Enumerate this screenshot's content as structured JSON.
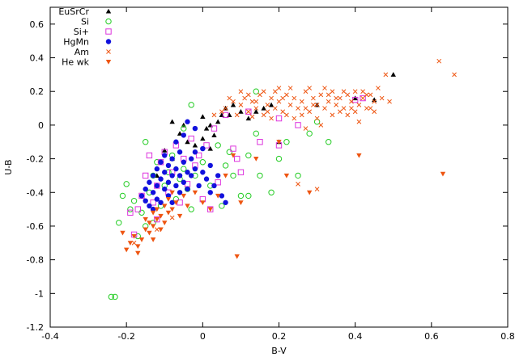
{
  "chart_data": {
    "type": "scatter",
    "xlabel": "B-V",
    "ylabel": "U-B",
    "xlim": [
      -0.4,
      0.8
    ],
    "ylim": [
      -1.2,
      0.7
    ],
    "x_ticks": [
      -0.4,
      -0.2,
      0,
      0.2,
      0.4,
      0.6,
      0.8
    ],
    "y_ticks": [
      -1.2,
      -1,
      -0.8,
      -0.6,
      -0.4,
      -0.2,
      0,
      0.2,
      0.4,
      0.6
    ],
    "x_tick_labels": [
      "-0.4",
      "-0.2",
      "0",
      "0.2",
      "0.4",
      "0.6",
      "0.8"
    ],
    "y_tick_labels": [
      "-1.2",
      "-1",
      "-0.8",
      "-0.6",
      "-0.4",
      "-0.2",
      "0",
      "0.2",
      "0.4",
      "0.6"
    ],
    "grid": false,
    "legend_position": "top-left",
    "series": [
      {
        "name": "EuSrCr",
        "marker": "triangle-up",
        "color": "#000000",
        "points": [
          [
            -0.1,
            -0.15
          ],
          [
            -0.08,
            -0.2
          ],
          [
            -0.06,
            -0.05
          ],
          [
            -0.04,
            -0.1
          ],
          [
            -0.02,
            -0.12
          ],
          [
            0.0,
            0.05
          ],
          [
            0.01,
            -0.02
          ],
          [
            0.02,
            0.0
          ],
          [
            0.03,
            -0.06
          ],
          [
            0.04,
            0.02
          ],
          [
            0.05,
            0.06
          ],
          [
            0.06,
            0.1
          ],
          [
            0.07,
            0.06
          ],
          [
            0.08,
            0.12
          ],
          [
            0.1,
            0.08
          ],
          [
            0.12,
            0.04
          ],
          [
            0.14,
            0.08
          ],
          [
            0.16,
            0.1
          ],
          [
            0.18,
            0.12
          ],
          [
            0.2,
            -0.1
          ],
          [
            0.3,
            0.12
          ],
          [
            0.4,
            0.16
          ],
          [
            0.45,
            0.15
          ],
          [
            0.5,
            0.3
          ],
          [
            -0.05,
            0.0
          ],
          [
            0.0,
            -0.08
          ],
          [
            0.02,
            -0.14
          ],
          [
            -0.12,
            -0.3
          ],
          [
            -0.08,
            0.02
          ]
        ]
      },
      {
        "name": "Si",
        "marker": "circle-open",
        "color": "#22cc22",
        "points": [
          [
            -0.24,
            -1.02
          ],
          [
            -0.23,
            -1.02
          ],
          [
            -0.22,
            -0.58
          ],
          [
            -0.2,
            -0.35
          ],
          [
            -0.19,
            -0.5
          ],
          [
            -0.18,
            -0.45
          ],
          [
            -0.16,
            -0.52
          ],
          [
            -0.15,
            -0.6
          ],
          [
            -0.14,
            -0.4
          ],
          [
            -0.13,
            -0.3
          ],
          [
            -0.12,
            -0.22
          ],
          [
            -0.11,
            -0.48
          ],
          [
            -0.1,
            -0.36
          ],
          [
            -0.09,
            -0.28
          ],
          [
            -0.08,
            -0.18
          ],
          [
            -0.07,
            -0.44
          ],
          [
            -0.06,
            -0.32
          ],
          [
            -0.05,
            -0.26
          ],
          [
            -0.04,
            -0.38
          ],
          [
            -0.03,
            -0.5
          ],
          [
            -0.02,
            -0.3
          ],
          [
            0.0,
            -0.22
          ],
          [
            0.02,
            -0.36
          ],
          [
            0.04,
            -0.12
          ],
          [
            0.06,
            -0.24
          ],
          [
            0.08,
            -0.3
          ],
          [
            0.1,
            -0.42
          ],
          [
            0.12,
            -0.18
          ],
          [
            0.14,
            -0.05
          ],
          [
            0.14,
            0.2
          ],
          [
            0.15,
            -0.3
          ],
          [
            0.18,
            -0.4
          ],
          [
            0.2,
            -0.2
          ],
          [
            0.22,
            -0.1
          ],
          [
            0.25,
            -0.3
          ],
          [
            0.28,
            -0.05
          ],
          [
            0.3,
            0.02
          ],
          [
            0.33,
            -0.1
          ],
          [
            -0.21,
            -0.42
          ],
          [
            -0.17,
            -0.66
          ],
          [
            -0.13,
            -0.58
          ],
          [
            -0.03,
            0.12
          ],
          [
            0.05,
            -0.48
          ],
          [
            0.07,
            -0.16
          ],
          [
            -0.15,
            -0.1
          ],
          [
            -0.05,
            -0.02
          ],
          [
            0.12,
            -0.42
          ]
        ]
      },
      {
        "name": "Si+",
        "marker": "square-open",
        "color": "#dd33dd",
        "points": [
          [
            -0.18,
            -0.65
          ],
          [
            -0.17,
            -0.5
          ],
          [
            -0.16,
            -0.42
          ],
          [
            -0.15,
            -0.3
          ],
          [
            -0.14,
            -0.18
          ],
          [
            -0.13,
            -0.46
          ],
          [
            -0.12,
            -0.36
          ],
          [
            -0.11,
            -0.22
          ],
          [
            -0.1,
            -0.16
          ],
          [
            -0.09,
            -0.4
          ],
          [
            -0.08,
            -0.28
          ],
          [
            -0.07,
            -0.12
          ],
          [
            -0.06,
            -0.46
          ],
          [
            -0.05,
            -0.2
          ],
          [
            -0.04,
            -0.35
          ],
          [
            -0.03,
            -0.08
          ],
          [
            -0.02,
            -0.24
          ],
          [
            0.0,
            -0.44
          ],
          [
            0.01,
            -0.12
          ],
          [
            0.02,
            -0.5
          ],
          [
            0.04,
            -0.34
          ],
          [
            0.06,
            0.06
          ],
          [
            0.08,
            -0.14
          ],
          [
            0.09,
            -0.2
          ],
          [
            0.1,
            -0.28
          ],
          [
            0.12,
            0.08
          ],
          [
            0.15,
            -0.1
          ],
          [
            0.2,
            -0.12
          ],
          [
            0.25,
            0.0
          ],
          [
            0.4,
            0.15
          ],
          [
            0.42,
            0.16
          ],
          [
            0.2,
            0.04
          ],
          [
            -0.19,
            -0.52
          ],
          [
            -0.12,
            -0.56
          ],
          [
            -0.01,
            -0.18
          ],
          [
            0.03,
            -0.02
          ]
        ]
      },
      {
        "name": "HgMn",
        "marker": "circle-filled",
        "color": "#1111dd",
        "points": [
          [
            -0.16,
            -0.42
          ],
          [
            -0.15,
            -0.45
          ],
          [
            -0.15,
            -0.38
          ],
          [
            -0.14,
            -0.34
          ],
          [
            -0.14,
            -0.48
          ],
          [
            -0.13,
            -0.3
          ],
          [
            -0.13,
            -0.4
          ],
          [
            -0.12,
            -0.26
          ],
          [
            -0.12,
            -0.44
          ],
          [
            -0.12,
            -0.36
          ],
          [
            -0.11,
            -0.22
          ],
          [
            -0.11,
            -0.32
          ],
          [
            -0.11,
            -0.46
          ],
          [
            -0.1,
            -0.28
          ],
          [
            -0.1,
            -0.38
          ],
          [
            -0.1,
            -0.18
          ],
          [
            -0.09,
            -0.42
          ],
          [
            -0.09,
            -0.24
          ],
          [
            -0.09,
            -0.34
          ],
          [
            -0.08,
            -0.3
          ],
          [
            -0.08,
            -0.46
          ],
          [
            -0.08,
            -0.2
          ],
          [
            -0.07,
            -0.36
          ],
          [
            -0.07,
            -0.26
          ],
          [
            -0.07,
            -0.1
          ],
          [
            -0.06,
            -0.4
          ],
          [
            -0.06,
            -0.3
          ],
          [
            -0.06,
            -0.16
          ],
          [
            -0.05,
            -0.22
          ],
          [
            -0.05,
            -0.34
          ],
          [
            -0.05,
            -0.06
          ],
          [
            -0.04,
            -0.28
          ],
          [
            -0.04,
            -0.38
          ],
          [
            -0.03,
            -0.2
          ],
          [
            -0.03,
            -0.3
          ],
          [
            -0.02,
            -0.02
          ],
          [
            -0.02,
            -0.26
          ],
          [
            -0.01,
            -0.36
          ],
          [
            0.0,
            -0.14
          ],
          [
            0.0,
            -0.28
          ],
          [
            0.01,
            -0.32
          ],
          [
            0.02,
            -0.24
          ],
          [
            0.03,
            -0.36
          ],
          [
            0.04,
            -0.3
          ],
          [
            0.05,
            -0.42
          ],
          [
            0.06,
            -0.46
          ],
          [
            0.02,
            -0.4
          ],
          [
            -0.04,
            0.02
          ],
          [
            -0.13,
            -0.5
          ],
          [
            -0.02,
            -0.16
          ]
        ]
      },
      {
        "name": "Am",
        "marker": "x",
        "color": "#ee5511",
        "points": [
          [
            0.06,
            0.1
          ],
          [
            0.08,
            0.14
          ],
          [
            0.09,
            0.06
          ],
          [
            0.1,
            0.12
          ],
          [
            0.11,
            0.16
          ],
          [
            0.12,
            0.08
          ],
          [
            0.13,
            0.14
          ],
          [
            0.14,
            0.1
          ],
          [
            0.15,
            0.18
          ],
          [
            0.16,
            0.06
          ],
          [
            0.17,
            0.12
          ],
          [
            0.18,
            0.16
          ],
          [
            0.19,
            0.1
          ],
          [
            0.2,
            0.14
          ],
          [
            0.21,
            0.08
          ],
          [
            0.22,
            0.18
          ],
          [
            0.23,
            0.12
          ],
          [
            0.24,
            0.16
          ],
          [
            0.25,
            0.1
          ],
          [
            0.26,
            0.14
          ],
          [
            0.27,
            0.2
          ],
          [
            0.28,
            0.08
          ],
          [
            0.29,
            0.16
          ],
          [
            0.3,
            0.12
          ],
          [
            0.31,
            0.18
          ],
          [
            0.32,
            0.1
          ],
          [
            0.33,
            0.14
          ],
          [
            0.34,
            0.2
          ],
          [
            0.35,
            0.12
          ],
          [
            0.36,
            0.16
          ],
          [
            0.37,
            0.1
          ],
          [
            0.38,
            0.18
          ],
          [
            0.39,
            0.14
          ],
          [
            0.4,
            0.2
          ],
          [
            0.41,
            0.12
          ],
          [
            0.42,
            0.16
          ],
          [
            0.43,
            0.1
          ],
          [
            0.44,
            0.18
          ],
          [
            0.45,
            0.14
          ],
          [
            0.46,
            0.22
          ],
          [
            0.47,
            0.16
          ],
          [
            0.13,
            0.05
          ],
          [
            0.16,
            0.2
          ],
          [
            0.18,
            0.04
          ],
          [
            0.2,
            0.22
          ],
          [
            0.22,
            0.06
          ],
          [
            0.24,
            0.04
          ],
          [
            0.26,
            0.06
          ],
          [
            0.28,
            0.22
          ],
          [
            0.3,
            0.04
          ],
          [
            0.32,
            0.22
          ],
          [
            0.34,
            0.06
          ],
          [
            0.36,
            0.08
          ],
          [
            0.38,
            0.06
          ],
          [
            0.4,
            0.08
          ],
          [
            0.42,
            0.2
          ],
          [
            0.44,
            0.1
          ],
          [
            0.48,
            0.3
          ],
          [
            0.62,
            0.38
          ],
          [
            0.66,
            0.3
          ],
          [
            0.49,
            0.14
          ],
          [
            0.41,
            0.02
          ],
          [
            0.31,
            0.0
          ],
          [
            0.27,
            -0.02
          ],
          [
            0.25,
            -0.35
          ],
          [
            0.3,
            -0.38
          ],
          [
            0.03,
            0.06
          ],
          [
            0.05,
            0.08
          ],
          [
            0.07,
            0.16
          ],
          [
            0.1,
            0.2
          ],
          [
            0.12,
            0.18
          ],
          [
            0.14,
            0.14
          ],
          [
            0.17,
            0.08
          ],
          [
            0.19,
            0.2
          ],
          [
            0.21,
            0.16
          ],
          [
            0.23,
            0.22
          ],
          [
            0.27,
            0.1
          ],
          [
            0.29,
            0.12
          ],
          [
            0.33,
            0.18
          ],
          [
            0.35,
            0.16
          ],
          [
            0.37,
            0.2
          ],
          [
            0.39,
            0.1
          ],
          [
            0.43,
            0.18
          ],
          [
            0.45,
            0.08
          ],
          [
            -0.18,
            -0.7
          ],
          [
            -0.12,
            -0.62
          ],
          [
            -0.08,
            -0.55
          ]
        ]
      },
      {
        "name": "He wk",
        "marker": "triangle-down",
        "color": "#ee5511",
        "points": [
          [
            -0.2,
            -0.74
          ],
          [
            -0.19,
            -0.7
          ],
          [
            -0.18,
            -0.66
          ],
          [
            -0.17,
            -0.72
          ],
          [
            -0.16,
            -0.68
          ],
          [
            -0.15,
            -0.62
          ],
          [
            -0.15,
            -0.56
          ],
          [
            -0.14,
            -0.64
          ],
          [
            -0.14,
            -0.58
          ],
          [
            -0.13,
            -0.52
          ],
          [
            -0.13,
            -0.6
          ],
          [
            -0.12,
            -0.5
          ],
          [
            -0.12,
            -0.56
          ],
          [
            -0.11,
            -0.62
          ],
          [
            -0.11,
            -0.54
          ],
          [
            -0.1,
            -0.58
          ],
          [
            -0.1,
            -0.48
          ],
          [
            -0.09,
            -0.52
          ],
          [
            -0.09,
            -0.44
          ],
          [
            -0.08,
            -0.5
          ],
          [
            -0.08,
            -0.4
          ],
          [
            -0.07,
            -0.46
          ],
          [
            -0.06,
            -0.54
          ],
          [
            -0.05,
            -0.42
          ],
          [
            -0.04,
            -0.48
          ],
          [
            -0.02,
            -0.4
          ],
          [
            0.0,
            -0.46
          ],
          [
            0.02,
            -0.5
          ],
          [
            0.04,
            -0.42
          ],
          [
            0.06,
            -0.3
          ],
          [
            0.08,
            -0.18
          ],
          [
            0.1,
            -0.46
          ],
          [
            0.09,
            -0.78
          ],
          [
            0.14,
            -0.2
          ],
          [
            0.2,
            -0.1
          ],
          [
            0.22,
            -0.3
          ],
          [
            0.28,
            -0.4
          ],
          [
            0.41,
            -0.18
          ],
          [
            0.63,
            -0.29
          ],
          [
            -0.21,
            -0.64
          ],
          [
            -0.17,
            -0.76
          ],
          [
            -0.13,
            -0.68
          ]
        ]
      }
    ]
  }
}
